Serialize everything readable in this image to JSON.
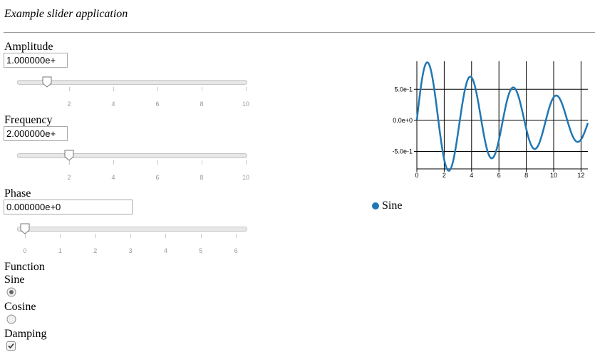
{
  "app": {
    "title": "Example slider application"
  },
  "controls": {
    "amplitude": {
      "label": "Amplitude",
      "value": "1.000000e+",
      "slider_value": 1,
      "min": 0,
      "max": 10,
      "ticks": [
        {
          "value": 2,
          "label": "2"
        },
        {
          "value": 4,
          "label": "4"
        },
        {
          "value": 6,
          "label": "6"
        },
        {
          "value": 8,
          "label": "8"
        },
        {
          "value": 10,
          "label": "10"
        }
      ]
    },
    "frequency": {
      "label": "Frequency",
      "value": "2.000000e+",
      "slider_value": 2,
      "min": 0,
      "max": 10,
      "ticks": [
        {
          "value": 2,
          "label": "2"
        },
        {
          "value": 4,
          "label": "4"
        },
        {
          "value": 6,
          "label": "6"
        },
        {
          "value": 8,
          "label": "8"
        },
        {
          "value": 10,
          "label": "10"
        }
      ]
    },
    "phase": {
      "label": "Phase",
      "value": "0.000000e+0",
      "slider_value": 0,
      "min": 0,
      "max": 6.28,
      "ticks": [
        {
          "value": 0,
          "label": "0"
        },
        {
          "value": 1,
          "label": "1"
        },
        {
          "value": 2,
          "label": "2"
        },
        {
          "value": 3,
          "label": "3"
        },
        {
          "value": 4,
          "label": "4"
        },
        {
          "value": 5,
          "label": "5"
        },
        {
          "value": 6,
          "label": "6"
        }
      ]
    },
    "function": {
      "label": "Function",
      "options": [
        {
          "label": "Sine",
          "selected": true
        },
        {
          "label": "Cosine",
          "selected": false
        }
      ]
    },
    "damping": {
      "label": "Damping",
      "checked": true
    }
  },
  "legend": {
    "label": "Sine",
    "color": "#1f77b4"
  },
  "chart_data": {
    "type": "line",
    "series": [
      {
        "name": "Sine",
        "color": "#1f77b4",
        "function": "sine",
        "amplitude": 1,
        "frequency": 2,
        "phase": 0,
        "damping": true
      }
    ],
    "xlim": [
      0,
      12.5
    ],
    "ylim": [
      -0.78,
      0.95
    ],
    "x_ticks": [
      {
        "value": 0,
        "label": "0"
      },
      {
        "value": 2,
        "label": "2"
      },
      {
        "value": 4,
        "label": "4"
      },
      {
        "value": 6,
        "label": "6"
      },
      {
        "value": 8,
        "label": "8"
      },
      {
        "value": 10,
        "label": "10"
      },
      {
        "value": 12,
        "label": "12"
      }
    ],
    "y_ticks": [
      {
        "value": 0.5,
        "label": "5.0e-1"
      },
      {
        "value": 0.0,
        "label": "0.0e+0"
      },
      {
        "value": -0.5,
        "label": "-5.0e-1"
      }
    ],
    "grid": true
  }
}
